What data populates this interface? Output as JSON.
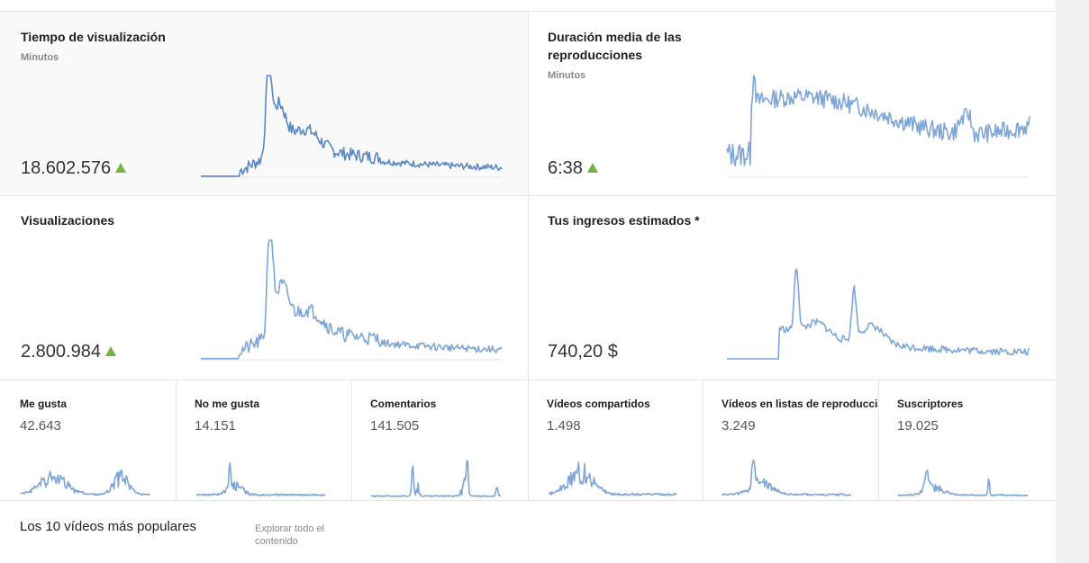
{
  "metrics": {
    "watch_time": {
      "title": "Tiempo de visualización",
      "sub": "Minutos",
      "value": "18.602.576",
      "trend": "up",
      "color": "#5a87c5"
    },
    "avg_duration": {
      "title": "Duración media de las reproducciones",
      "sub": "Minutos",
      "value": "6:38",
      "trend": "up",
      "color": "#7ea6d8"
    },
    "views": {
      "title": "Visualizaciones",
      "value": "2.800.984",
      "trend": "up",
      "color": "#7ea6d8"
    },
    "revenue": {
      "title": "Tus ingresos estimados *",
      "value": "740,20 $",
      "color": "#7ea6d8"
    }
  },
  "small_metrics": [
    {
      "title": "Me gusta",
      "value": "42.643"
    },
    {
      "title": "No me gusta",
      "value": "14.151"
    },
    {
      "title": "Comentarios",
      "value": "141.505"
    },
    {
      "title": "Vídeos compartidos",
      "value": "1.498"
    },
    {
      "title": "Vídeos en listas de reproducción",
      "value": "3.249"
    },
    {
      "title": "Suscriptores",
      "value": "19.025"
    }
  ],
  "top_videos": {
    "title": "Los 10 vídeos más populares",
    "link": "Explorar todo el contenido"
  },
  "colors": {
    "accent_up": "#74b349",
    "line": "#7ea6d8",
    "line_dark": "#5a87c5"
  }
}
